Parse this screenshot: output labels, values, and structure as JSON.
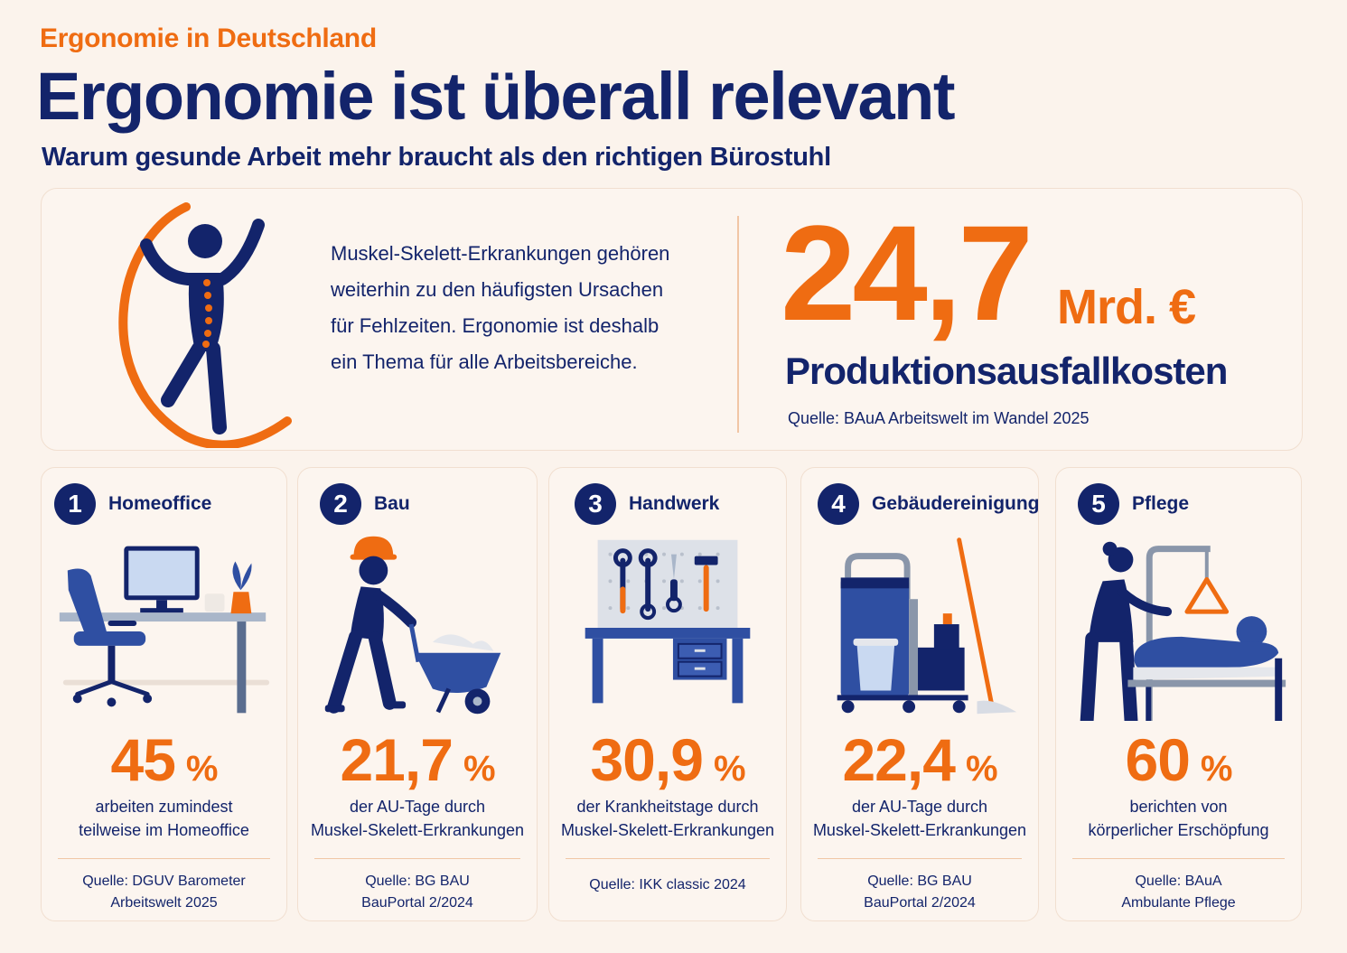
{
  "header": {
    "kicker": "Ergonomie in Deutschland",
    "title": "Ergonomie ist überall relevant",
    "subtitle": "Warum gesunde Arbeit mehr braucht als den richtigen Bürostuhl"
  },
  "hero": {
    "text_lines": [
      "Muskel-Skelett-Erkrankungen gehören",
      "weiterhin zu den häufigsten Ursachen",
      "für Fehlzeiten. Ergonomie ist deshalb",
      "ein Thema für alle Arbeitsbereiche."
    ],
    "figure_icon": "person-spine-icon",
    "value": "24,7",
    "unit": "Mrd. €",
    "label": "Produktionsausfallkosten",
    "source": "Quelle: BAuA Arbeitswelt im Wandel 2025"
  },
  "colors": {
    "accent": "#ef6c12",
    "navy": "#13246b",
    "blue": "#2f4fa2",
    "background": "#fbf3ec"
  },
  "cards": [
    {
      "number": "1",
      "title": "Homeoffice",
      "icon": "home-office-desk-icon",
      "value": "45",
      "unit": "%",
      "desc_lines": [
        "arbeiten zumindest",
        "teilweise im Homeoffice"
      ],
      "source_lines": [
        "Quelle: DGUV Barometer",
        "Arbeitswelt 2025"
      ]
    },
    {
      "number": "2",
      "title": "Bau",
      "icon": "construction-worker-icon",
      "value": "21,7",
      "unit": "%",
      "desc_lines": [
        "der AU-Tage durch",
        "Muskel-Skelett-Erkrankungen"
      ],
      "source_lines": [
        "Quelle: BG BAU",
        "BauPortal 2/2024"
      ]
    },
    {
      "number": "3",
      "title": "Handwerk",
      "icon": "workbench-tools-icon",
      "value": "30,9",
      "unit": "%",
      "desc_lines": [
        "der Krankheitstage durch",
        "Muskel-Skelett-Erkrankungen"
      ],
      "source_lines": [
        "Quelle: IKK classic 2024"
      ]
    },
    {
      "number": "4",
      "title": "Gebäudereinigung",
      "icon": "cleaning-cart-icon",
      "value": "22,4",
      "unit": "%",
      "desc_lines": [
        "der AU-Tage durch",
        "Muskel-Skelett-Erkrankungen"
      ],
      "source_lines": [
        "Quelle: BG BAU",
        "BauPortal 2/2024"
      ]
    },
    {
      "number": "5",
      "title": "Pflege",
      "icon": "care-bed-icon",
      "value": "60",
      "unit": "%",
      "desc_lines": [
        "berichten von",
        "körperlicher Erschöpfung"
      ],
      "source_lines": [
        "Quelle: BAuA",
        "Ambulante Pflege"
      ]
    }
  ]
}
